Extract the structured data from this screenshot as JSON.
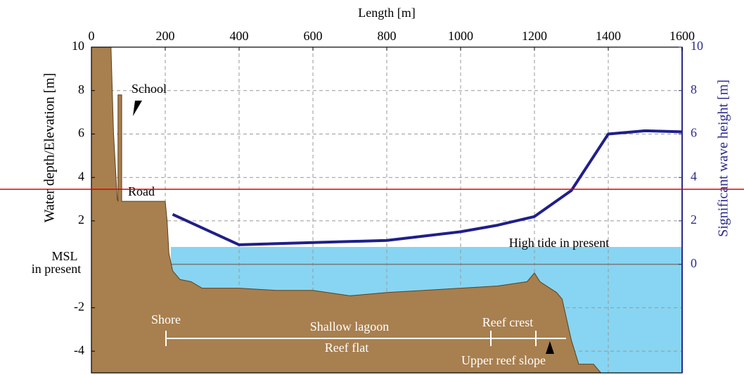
{
  "chart_data": {
    "type": "line",
    "xlabel": "Length [m]",
    "ylabel": "Water depth/Elevation [m]",
    "y2label": "Significant wave height [m]",
    "xlim": [
      0,
      1600
    ],
    "xticks": [
      0,
      200,
      400,
      600,
      800,
      1000,
      1200,
      1400,
      1600
    ],
    "ylim": [
      -5,
      10
    ],
    "yticks": [
      -4,
      -2,
      2,
      4,
      6,
      8,
      10
    ],
    "y2lim": [
      -5,
      10
    ],
    "y2ticks": [
      0,
      2,
      4,
      6,
      8,
      10
    ],
    "grid": true,
    "series": [
      {
        "color": "#1f1f8a",
        "axis": "y2",
        "x": [
          220,
          400,
          800,
          1000,
          1100,
          1200,
          1300,
          1400,
          1500,
          1600
        ],
        "values": [
          2.3,
          0.9,
          1.1,
          1.5,
          1.8,
          2.2,
          3.4,
          6.0,
          6.15,
          6.1
        ]
      }
    ],
    "terrain": {
      "color": "#a87f4f",
      "x": [
        0,
        53,
        60,
        70,
        72,
        72,
        82,
        82,
        200,
        205,
        210,
        220,
        240,
        270,
        300,
        400,
        500,
        600,
        700,
        800,
        900,
        1000,
        1100,
        1180,
        1200,
        1215,
        1260,
        1275,
        1300,
        1320,
        1360,
        1380
      ],
      "values": [
        10,
        10,
        6,
        3,
        2.9,
        7.8,
        7.8,
        2.9,
        2.9,
        2,
        0.5,
        -0.3,
        -0.7,
        -0.8,
        -1.1,
        -1.1,
        -1.2,
        -1.2,
        -1.45,
        -1.3,
        -1.2,
        -1.1,
        -1.0,
        -0.8,
        -0.4,
        -0.8,
        -1.3,
        -1.6,
        -3.5,
        -4.6,
        -4.6,
        -5
      ]
    },
    "water": {
      "color": "#87d5f2",
      "level": 0.8,
      "x_start": 215
    },
    "annotations": {
      "msl": "MSL",
      "msl2": "in present",
      "school": "School",
      "road": "Road",
      "high_tide": "High tide in present",
      "shore": "Shore",
      "lagoon": "Shallow lagoon",
      "crest": "Reef crest",
      "flat": "Reef flat",
      "slope": "Upper reef slope"
    }
  }
}
